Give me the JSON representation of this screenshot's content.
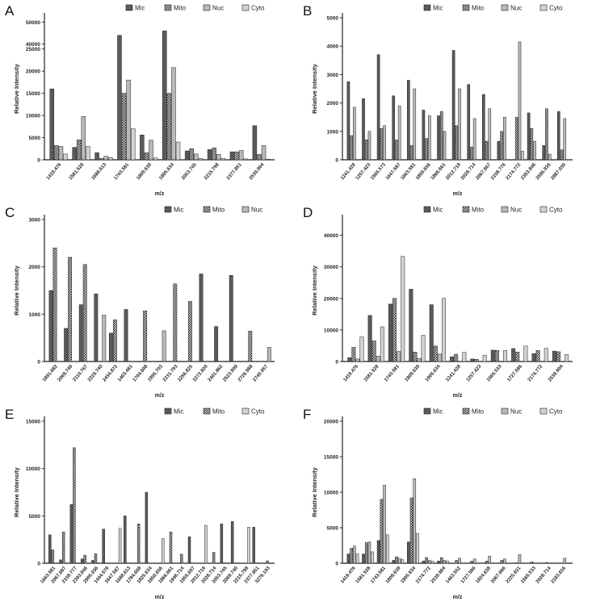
{
  "colors": {
    "Mic": "#5a5a5a",
    "Mito": "checker",
    "Nuc": "#b9b9b9",
    "Cyto": "#d2d2d2"
  },
  "chart_data": [
    {
      "panel": "A",
      "type": "bar",
      "xlabel": "m/z",
      "ylabel": "Relative Intensity",
      "legend": "top-right",
      "grid": false,
      "series_names": [
        "Mic",
        "Mito",
        "Nuc",
        "Cyto"
      ],
      "yticks": [
        0,
        5000,
        10000,
        15000,
        20000,
        25000,
        40000,
        50000
      ],
      "axis_break": [
        25000,
        40000
      ],
      "ylim": [
        0,
        52000
      ],
      "categories": [
        "1419.476",
        "1581.528",
        "1688.613",
        "1743.581",
        "1809.639",
        "1905.634",
        "2053.745",
        "2215.798",
        "2377.851",
        "2539.904"
      ],
      "values": [
        [
          16000,
          3200,
          3000,
          1300
        ],
        [
          2800,
          4500,
          9800,
          3000
        ],
        [
          1600,
          300,
          800,
          500
        ],
        [
          44000,
          15000,
          18000,
          7000
        ],
        [
          5600,
          1600,
          4400,
          400
        ],
        [
          46000,
          15000,
          20800,
          4000
        ],
        [
          2000,
          2500,
          1300,
          300
        ],
        [
          2300,
          2700,
          1200,
          300
        ],
        [
          1800,
          1800,
          2100,
          200
        ],
        [
          7700,
          1200,
          3200,
          100
        ]
      ]
    },
    {
      "panel": "B",
      "type": "bar",
      "xlabel": "m/z",
      "ylabel": "Relative Intensity",
      "legend": "top-right",
      "grid": false,
      "series_names": [
        "Mic",
        "Mito",
        "Nuc",
        "Cyto"
      ],
      "yticks": [
        0,
        1000,
        2000,
        3000,
        4000,
        5000
      ],
      "ylim": [
        0,
        5000
      ],
      "categories": [
        "1241.428",
        "1257.423",
        "1565.573",
        "1647.587",
        "1663.581",
        "1850.656",
        "1866.661",
        "2012.719",
        "2028.714",
        "2067.667",
        "2158.776",
        "2174.772",
        "2393.846",
        "2596.935",
        "2887.035"
      ],
      "values": [
        [
          2750,
          850,
          1850,
          0
        ],
        [
          2150,
          700,
          1000,
          0
        ],
        [
          3700,
          1100,
          1200,
          0
        ],
        [
          2250,
          700,
          1900,
          0
        ],
        [
          2800,
          500,
          2500,
          0
        ],
        [
          1750,
          750,
          1550,
          0
        ],
        [
          1550,
          1700,
          1000,
          0
        ],
        [
          3850,
          1200,
          2500,
          0
        ],
        [
          2650,
          450,
          1450,
          0
        ],
        [
          2300,
          650,
          1800,
          0
        ],
        [
          650,
          1000,
          1500,
          0
        ],
        [
          0,
          1500,
          4150,
          300
        ],
        [
          1650,
          1100,
          650,
          0
        ],
        [
          500,
          1800,
          200,
          0
        ],
        [
          1700,
          350,
          1450,
          0
        ]
      ]
    },
    {
      "panel": "C",
      "type": "bar",
      "xlabel": "m/z",
      "ylabel": "Relative Intensity",
      "legend": "top-right",
      "grid": false,
      "series_names": [
        "Mic",
        "Mito",
        "Nuc"
      ],
      "yticks": [
        0,
        1000,
        2000,
        3000
      ],
      "ylim": [
        0,
        3000
      ],
      "categories": [
        "1891.682",
        "2069.740",
        "2110.767",
        "2229.740",
        "2434.872",
        "1403.481",
        "1704.608",
        "1995.703",
        "2231.793",
        "2256.825",
        "2272.820",
        "2401.862",
        "2523.909",
        "2726.988",
        "2740.957"
      ],
      "values": [
        [
          1500,
          2400,
          0
        ],
        [
          700,
          2200,
          0
        ],
        [
          1200,
          2050,
          0
        ],
        [
          1430,
          0,
          980
        ],
        [
          600,
          880,
          0
        ],
        [
          1100,
          0,
          0
        ],
        [
          0,
          1070,
          0
        ],
        [
          0,
          0,
          650
        ],
        [
          0,
          1640,
          0
        ],
        [
          0,
          1270,
          0
        ],
        [
          1850,
          0,
          0
        ],
        [
          740,
          0,
          0
        ],
        [
          1820,
          0,
          0
        ],
        [
          0,
          640,
          0
        ],
        [
          0,
          0,
          300
        ]
      ]
    },
    {
      "panel": "D",
      "type": "bar",
      "xlabel": "m/z",
      "ylabel": "Relative Intensity",
      "legend": "top",
      "grid": false,
      "series_names": [
        "Mic",
        "Mito",
        "Nuc",
        "Cyto"
      ],
      "yticks": [
        0,
        10000,
        20000,
        30000,
        40000
      ],
      "ylim": [
        0,
        45000
      ],
      "categories": [
        "1419.476",
        "1581.528",
        "1743.581",
        "1809.639",
        "1905.634",
        "1241.428",
        "1257.423",
        "1565.533",
        "1727.586",
        "2174.772",
        "2539.904"
      ],
      "values": [
        [
          1200,
          4500,
          800,
          7800
        ],
        [
          14600,
          6500,
          1700,
          11000
        ],
        [
          18200,
          20000,
          3200,
          33300
        ],
        [
          22900,
          3000,
          1000,
          8300
        ],
        [
          18000,
          4900,
          2400,
          20000
        ],
        [
          1500,
          2300,
          0,
          2900
        ],
        [
          800,
          700,
          0,
          2000
        ],
        [
          3600,
          3500,
          0,
          3500
        ],
        [
          4100,
          3000,
          0,
          4900
        ],
        [
          2500,
          3500,
          0,
          4200
        ],
        [
          3300,
          3100,
          0,
          2200
        ]
      ]
    },
    {
      "panel": "E",
      "type": "bar",
      "xlabel": "m/z",
      "ylabel": "Relative Intensity",
      "legend": "top",
      "grid": false,
      "series_names": [
        "Mic",
        "Mito",
        "Cyto"
      ],
      "yticks": [
        0,
        5000,
        10000,
        15000
      ],
      "ylim": [
        0,
        15000
      ],
      "categories": [
        "1663.581",
        "2067.687",
        "2158.777",
        "2393.846",
        "2905.036",
        "1444.579",
        "1647.587",
        "1688.613",
        "1784.608",
        "1825.634",
        "1850.656",
        "1866.661",
        "1946.714",
        "1955.697",
        "2012.719",
        "2028.714",
        "2053.745",
        "2069.740",
        "2215.798",
        "2377.851",
        "3276.193"
      ],
      "values": [
        [
          3000,
          1400,
          0
        ],
        [
          350,
          3300,
          0
        ],
        [
          6200,
          12200,
          0
        ],
        [
          450,
          850,
          0
        ],
        [
          300,
          1000,
          0
        ],
        [
          3600,
          0,
          0
        ],
        [
          0,
          0,
          3700
        ],
        [
          5000,
          0,
          0
        ],
        [
          0,
          4150,
          0
        ],
        [
          7500,
          0,
          0
        ],
        [
          0,
          0,
          2600
        ],
        [
          0,
          3300,
          0
        ],
        [
          0,
          950,
          0
        ],
        [
          2800,
          0,
          0
        ],
        [
          0,
          0,
          4000
        ],
        [
          0,
          1150,
          0
        ],
        [
          4150,
          0,
          0
        ],
        [
          4400,
          0,
          0
        ],
        [
          0,
          0,
          3800
        ],
        [
          3800,
          0,
          0
        ],
        [
          0,
          250,
          0
        ]
      ]
    },
    {
      "panel": "F",
      "type": "bar",
      "xlabel": "m/z",
      "ylabel": "Relative Intensity",
      "legend": "top-right",
      "grid": false,
      "series_names": [
        "Mic",
        "Mito",
        "Nuc",
        "Cyto"
      ],
      "yticks": [
        0,
        5000,
        10000,
        15000,
        20000
      ],
      "ylim": [
        0,
        20000
      ],
      "categories": [
        "1419.476",
        "1581.528",
        "1743.581",
        "1809.639",
        "1905.634",
        "2174.772",
        "2539.904",
        "1463.552",
        "1727.586",
        "1824.638",
        "2067.666",
        "2225.831",
        "1565.533",
        "2028.714",
        "2183.816"
      ],
      "values": [
        [
          1300,
          2100,
          2400,
          1300
        ],
        [
          1300,
          2900,
          3000,
          1600
        ],
        [
          3200,
          9000,
          11000,
          4000
        ],
        [
          400,
          900,
          700,
          500
        ],
        [
          3000,
          9200,
          11900,
          4200
        ],
        [
          300,
          800,
          400,
          300
        ],
        [
          300,
          800,
          400,
          300
        ],
        [
          0,
          400,
          700,
          0
        ],
        [
          0,
          300,
          600,
          0
        ],
        [
          0,
          300,
          1000,
          0
        ],
        [
          0,
          400,
          600,
          0
        ],
        [
          0,
          50,
          1200,
          0
        ],
        [
          0,
          200,
          0,
          0
        ],
        [
          0,
          100,
          0,
          0
        ],
        [
          0,
          0,
          700,
          0
        ]
      ]
    }
  ]
}
